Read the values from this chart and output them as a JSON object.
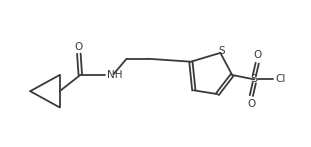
{
  "background_color": "#ffffff",
  "line_color": "#3a3a3a",
  "text_color": "#3a3a3a",
  "line_width": 1.3,
  "font_size": 7.5,
  "figsize": [
    3.11,
    1.47
  ],
  "dpi": 100,
  "xlim": [
    0,
    10.5
  ],
  "ylim": [
    0,
    4.8
  ]
}
